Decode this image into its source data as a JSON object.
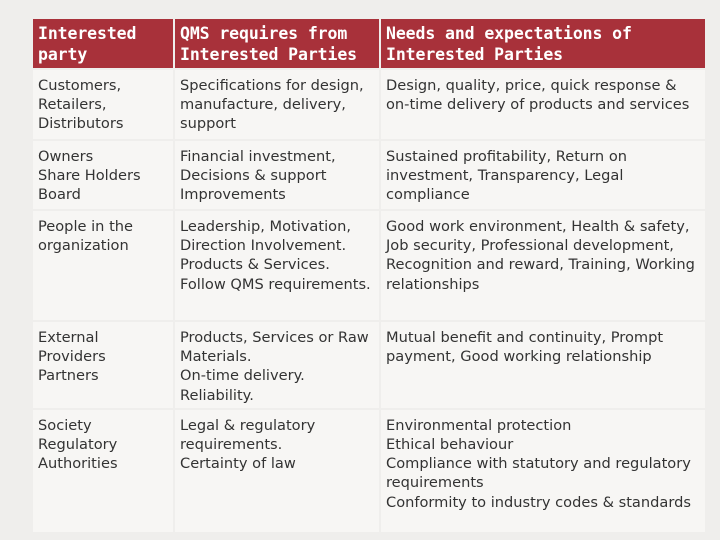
{
  "table": {
    "headers": [
      "Interested party",
      "QMS requires from Interested Parties",
      "Needs and expectations of Interested Parties"
    ],
    "rows": [
      [
        "Customers, Retailers, Distributors",
        "Specifications for design, manufacture, delivery, support",
        "Design, quality, price, quick response & on-time delivery of products and services"
      ],
      [
        "Owners\nShare Holders\nBoard",
        "Financial investment, Decisions & support Improvements",
        "Sustained profitability, Return on investment, Transparency, Legal compliance"
      ],
      [
        "People in the organization",
        "Leadership, Motivation, Direction Involvement. Products & Services. Follow QMS requirements.",
        "Good work environment, Health & safety, Job security, Professional development, Recognition and reward, Training, Working relationships"
      ],
      [
        "External Providers Partners",
        "Products, Services or Raw Materials.\nOn-time delivery. Reliability.",
        "Mutual benefit and continuity, Prompt payment, Good working relationship"
      ],
      [
        "Society\nRegulatory Authorities",
        "Legal & regulatory requirements.\nCertainty of law",
        "Environmental protection\nEthical behaviour\nCompliance with statutory and regulatory requirements\nConformity to industry codes & standards"
      ]
    ]
  },
  "colors": {
    "header_bg": "#a8313a",
    "header_text": "#ffffff",
    "cell_bg": "#f7f6f4",
    "page_bg": "#efeeec"
  }
}
